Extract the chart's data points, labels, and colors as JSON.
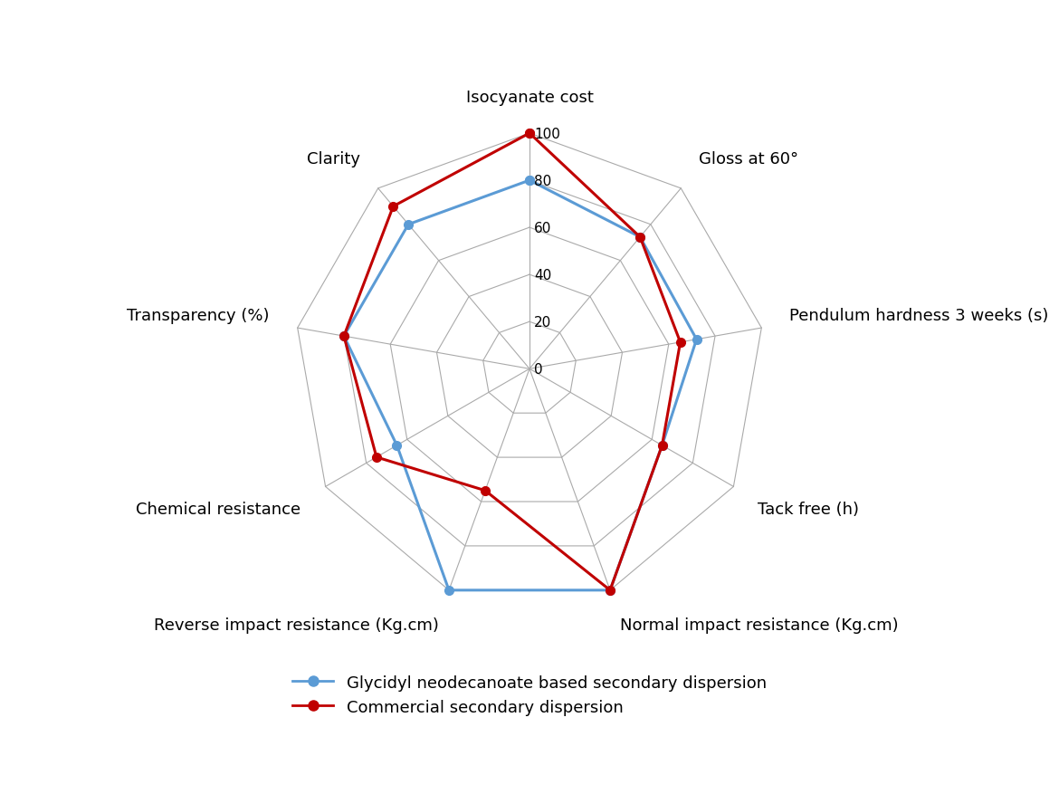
{
  "categories": [
    "Isocyanate cost",
    "Gloss at 60°",
    "Pendulum hardness 3 weeks (s)",
    "Tack free (h)",
    "Normal impact resistance (Kg.cm)",
    "Reverse impact resistance (Kg.cm)",
    "Chemical resistance",
    "Transparency (%)",
    "Clarity"
  ],
  "series": [
    {
      "name": "Glycidyl neodecanoate based secondary dispersion",
      "values": [
        80,
        73,
        72,
        65,
        100,
        100,
        65,
        80,
        80
      ],
      "color": "#5B9BD5",
      "linewidth": 2.2,
      "marker": "o",
      "markersize": 7
    },
    {
      "name": "Commercial secondary dispersion",
      "values": [
        100,
        73,
        65,
        65,
        100,
        55,
        75,
        80,
        90
      ],
      "color": "#C00000",
      "linewidth": 2.2,
      "marker": "o",
      "markersize": 7
    }
  ],
  "rticks": [
    0,
    20,
    40,
    60,
    80,
    100
  ],
  "rlim": [
    0,
    100
  ],
  "tick_fontsize": 11,
  "label_fontsize": 13,
  "legend_fontsize": 13,
  "grid_color": "#AAAAAA",
  "background_color": "#FFFFFF",
  "figsize": [
    11.7,
    8.78
  ],
  "dpi": 100
}
